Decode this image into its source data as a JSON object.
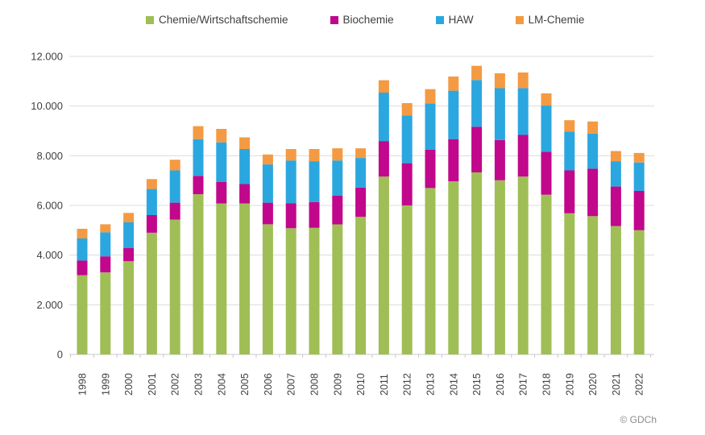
{
  "footer": {
    "credit": "© GDCh"
  },
  "chart_data": {
    "type": "bar",
    "subtype": "stacked-vertical",
    "title": "",
    "xlabel": "",
    "ylabel": "",
    "categories": [
      "1998",
      "1999",
      "2000",
      "2001",
      "2002",
      "2003",
      "2004",
      "2005",
      "2006",
      "2007",
      "2008",
      "2009",
      "2010",
      "2011",
      "2012",
      "2013",
      "2014",
      "2015",
      "2016",
      "2017",
      "2018",
      "2019",
      "2020",
      "2021",
      "2022"
    ],
    "series": [
      {
        "name": "Chemie/Wirtschaftschemie",
        "color": "#9fbe55",
        "values": [
          3190,
          3300,
          3750,
          4900,
          5430,
          6450,
          6080,
          6080,
          5240,
          5080,
          5100,
          5240,
          5540,
          7160,
          6000,
          6700,
          6970,
          7330,
          7010,
          7160,
          6430,
          5680,
          5570,
          5170,
          5000
        ]
      },
      {
        "name": "Biochemie",
        "color": "#c1078b",
        "values": [
          590,
          650,
          540,
          710,
          680,
          740,
          860,
          780,
          870,
          1000,
          1040,
          1160,
          1180,
          1430,
          1700,
          1540,
          1700,
          1840,
          1620,
          1680,
          1730,
          1730,
          1910,
          1590,
          1590
        ]
      },
      {
        "name": "HAW",
        "color": "#2ba7e0",
        "values": [
          890,
          970,
          1030,
          1050,
          1300,
          1480,
          1600,
          1410,
          1540,
          1730,
          1640,
          1410,
          1190,
          1950,
          1920,
          1870,
          1950,
          1880,
          2090,
          1880,
          1860,
          1560,
          1410,
          1020,
          1140
        ]
      },
      {
        "name": "LM-Chemie",
        "color": "#f49a42",
        "values": [
          390,
          320,
          380,
          400,
          430,
          520,
          540,
          470,
          400,
          460,
          490,
          490,
          390,
          500,
          500,
          570,
          570,
          570,
          600,
          630,
          490,
          460,
          490,
          410,
          380
        ]
      }
    ],
    "ylim": [
      0,
      12000
    ],
    "ytick_interval": 2000,
    "ytick_labels": [
      "0",
      "2.000",
      "4.000",
      "6.000",
      "8.000",
      "10.000",
      "12.000"
    ],
    "grid": true,
    "legend_position": "top",
    "x_labels_rotated_degrees": 90
  },
  "style": {
    "grid_color": "#dcdcdc",
    "axis_color": "#c9c9c9",
    "tick_label_color": "#404040"
  }
}
